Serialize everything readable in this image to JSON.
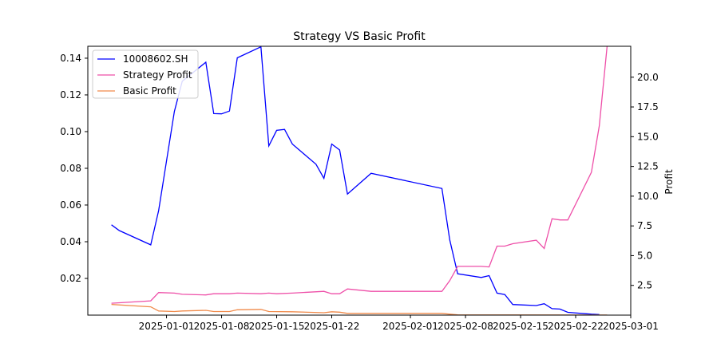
{
  "chart_data": {
    "type": "line",
    "title": "Strategy VS Basic Profit",
    "xlabel": "",
    "ylabel_left": "",
    "ylabel_right": "Profit",
    "x_ticks": [
      "2025-01-01",
      "2025-01-08",
      "2025-01-15",
      "2025-01-22",
      "2025-02-01",
      "2025-02-08",
      "2025-02-15",
      "2025-02-22",
      "2025-03-01"
    ],
    "y_left_ticks": [
      "0.02",
      "0.04",
      "0.06",
      "0.08",
      "0.10",
      "0.12",
      "0.14"
    ],
    "y_right_ticks": [
      "2.5",
      "5.0",
      "7.5",
      "10.0",
      "12.5",
      "15.0",
      "17.5",
      "20.0"
    ],
    "ylim_left": [
      0.0,
      0.1465
    ],
    "ylim_right": [
      0.0,
      22.6
    ],
    "xlim": [
      "2024-12-22",
      "2025-03-01"
    ],
    "legend_position": "upper-left",
    "grid": false,
    "series": [
      {
        "name": "10008602.SH",
        "axis": "left",
        "color": "#0000ff",
        "points": [
          [
            "2024-12-25",
            0.0492
          ],
          [
            "2024-12-26",
            0.0461
          ],
          [
            "2024-12-30",
            0.0383
          ],
          [
            "2024-12-31",
            0.057
          ],
          [
            "2025-01-02",
            0.111
          ],
          [
            "2025-01-03",
            0.1275
          ],
          [
            "2025-01-06",
            0.1378
          ],
          [
            "2025-01-07",
            0.1098
          ],
          [
            "2025-01-08",
            0.1097
          ],
          [
            "2025-01-09",
            0.1112
          ],
          [
            "2025-01-10",
            0.1402
          ],
          [
            "2025-01-13",
            0.1462
          ],
          [
            "2025-01-14",
            0.0922
          ],
          [
            "2025-01-15",
            0.1007
          ],
          [
            "2025-01-16",
            0.1012
          ],
          [
            "2025-01-17",
            0.0932
          ],
          [
            "2025-01-20",
            0.0822
          ],
          [
            "2025-01-21",
            0.0745
          ],
          [
            "2025-01-22",
            0.0932
          ],
          [
            "2025-01-23",
            0.09
          ],
          [
            "2025-01-24",
            0.066
          ],
          [
            "2025-01-27",
            0.0773
          ],
          [
            "2025-02-05",
            0.069
          ],
          [
            "2025-02-06",
            0.041
          ],
          [
            "2025-02-07",
            0.0225
          ],
          [
            "2025-02-10",
            0.0205
          ],
          [
            "2025-02-11",
            0.0215
          ],
          [
            "2025-02-12",
            0.012
          ],
          [
            "2025-02-13",
            0.0112
          ],
          [
            "2025-02-14",
            0.0058
          ],
          [
            "2025-02-17",
            0.0052
          ],
          [
            "2025-02-18",
            0.0062
          ],
          [
            "2025-02-19",
            0.0035
          ],
          [
            "2025-02-20",
            0.0033
          ],
          [
            "2025-02-21",
            0.0015
          ],
          [
            "2025-02-24",
            0.0005
          ],
          [
            "2025-02-25",
            0.0003
          ]
        ]
      },
      {
        "name": "Strategy Profit",
        "axis": "right",
        "color": "#ee4fa8",
        "points": [
          [
            "2024-12-25",
            1.0
          ],
          [
            "2024-12-30",
            1.2
          ],
          [
            "2024-12-31",
            1.9
          ],
          [
            "2025-01-02",
            1.85
          ],
          [
            "2025-01-03",
            1.75
          ],
          [
            "2025-01-06",
            1.7
          ],
          [
            "2025-01-07",
            1.8
          ],
          [
            "2025-01-09",
            1.8
          ],
          [
            "2025-01-10",
            1.85
          ],
          [
            "2025-01-13",
            1.8
          ],
          [
            "2025-01-14",
            1.85
          ],
          [
            "2025-01-15",
            1.8
          ],
          [
            "2025-01-17",
            1.85
          ],
          [
            "2025-01-21",
            2.0
          ],
          [
            "2025-01-22",
            1.8
          ],
          [
            "2025-01-23",
            1.8
          ],
          [
            "2025-01-24",
            2.2
          ],
          [
            "2025-01-27",
            2.0
          ],
          [
            "2025-02-05",
            2.0
          ],
          [
            "2025-02-06",
            2.9
          ],
          [
            "2025-02-07",
            4.1
          ],
          [
            "2025-02-10",
            4.1
          ],
          [
            "2025-02-11",
            4.05
          ],
          [
            "2025-02-12",
            5.8
          ],
          [
            "2025-02-13",
            5.8
          ],
          [
            "2025-02-14",
            6.0
          ],
          [
            "2025-02-17",
            6.3
          ],
          [
            "2025-02-18",
            5.6
          ],
          [
            "2025-02-19",
            8.1
          ],
          [
            "2025-02-20",
            8.0
          ],
          [
            "2025-02-21",
            8.0
          ],
          [
            "2025-02-24",
            12.0
          ],
          [
            "2025-02-25",
            15.9
          ],
          [
            "2025-02-26",
            22.6
          ]
        ]
      },
      {
        "name": "Basic Profit",
        "axis": "right",
        "color": "#f08a4a",
        "points": [
          [
            "2024-12-25",
            0.9
          ],
          [
            "2024-12-30",
            0.7
          ],
          [
            "2024-12-31",
            0.35
          ],
          [
            "2025-01-02",
            0.3
          ],
          [
            "2025-01-03",
            0.35
          ],
          [
            "2025-01-06",
            0.4
          ],
          [
            "2025-01-07",
            0.3
          ],
          [
            "2025-01-09",
            0.3
          ],
          [
            "2025-01-10",
            0.45
          ],
          [
            "2025-01-13",
            0.48
          ],
          [
            "2025-01-14",
            0.3
          ],
          [
            "2025-01-17",
            0.28
          ],
          [
            "2025-01-21",
            0.2
          ],
          [
            "2025-01-22",
            0.28
          ],
          [
            "2025-01-23",
            0.25
          ],
          [
            "2025-01-24",
            0.15
          ],
          [
            "2025-02-05",
            0.15
          ],
          [
            "2025-02-06",
            0.08
          ],
          [
            "2025-02-07",
            0.02
          ],
          [
            "2025-02-26",
            0.01
          ]
        ]
      }
    ]
  }
}
